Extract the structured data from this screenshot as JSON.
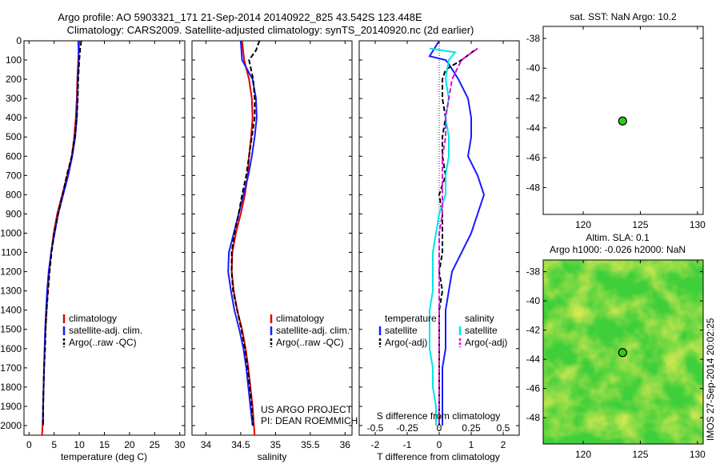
{
  "header": {
    "title_line1": "Argo profile: AO 5903321_171 21-Sep-2014 20140922_825 43.542S 123.448E",
    "title_line2": "Climatology: CARS2009. Satellite-adjusted climatology: synTS_20140920.nc (2d earlier)"
  },
  "side_label": "IMOS 27-Sep-2014 20:02:25",
  "colors": {
    "climatology": "#e00000",
    "satellite": "#1a1aff",
    "argo": "#000000",
    "sat_diff": "#00e5e5",
    "argo_sal": "#e000e0",
    "marker": "#2ecc1a"
  },
  "chart_data": [
    {
      "type": "line",
      "id": "temperature",
      "xlabel": "temperature (deg C)",
      "ylabel": "",
      "xlim": [
        -1,
        31
      ],
      "ylim": [
        2050,
        0
      ],
      "xticks": [
        0,
        5,
        10,
        15,
        20,
        25,
        30
      ],
      "yticks": [
        0,
        100,
        200,
        300,
        400,
        500,
        600,
        700,
        800,
        900,
        1000,
        1100,
        1200,
        1300,
        1400,
        1500,
        1600,
        1700,
        1800,
        1900,
        2000
      ],
      "legend": [
        "climatology",
        "satellite-adj. clim.",
        "Argo(..raw -QC)"
      ],
      "series": [
        {
          "name": "climatology",
          "style": "solid",
          "color": "#e00000",
          "points": [
            [
              10,
              0
            ],
            [
              9.8,
              100
            ],
            [
              9.6,
              200
            ],
            [
              9.5,
              300
            ],
            [
              9.3,
              400
            ],
            [
              9,
              500
            ],
            [
              8.5,
              600
            ],
            [
              7.6,
              700
            ],
            [
              6.6,
              800
            ],
            [
              5.6,
              900
            ],
            [
              4.9,
              1000
            ],
            [
              4.4,
              1100
            ],
            [
              4,
              1200
            ],
            [
              3.7,
              1300
            ],
            [
              3.5,
              1400
            ],
            [
              3.3,
              1500
            ],
            [
              3.1,
              1600
            ],
            [
              3,
              1700
            ],
            [
              2.9,
              1800
            ],
            [
              2.8,
              1900
            ],
            [
              2.7,
              2000
            ],
            [
              2.6,
              2050
            ]
          ]
        },
        {
          "name": "satellite-adj. clim.",
          "style": "solid",
          "color": "#1a1aff",
          "points": [
            [
              9.8,
              0
            ],
            [
              9.9,
              100
            ],
            [
              9.7,
              200
            ],
            [
              9.6,
              300
            ],
            [
              9.5,
              400
            ],
            [
              9.2,
              500
            ],
            [
              8.6,
              600
            ],
            [
              7.8,
              700
            ],
            [
              6.8,
              800
            ],
            [
              5.8,
              900
            ],
            [
              5.1,
              1000
            ],
            [
              4.4,
              1100
            ],
            [
              3.9,
              1200
            ],
            [
              3.6,
              1300
            ],
            [
              3.4,
              1400
            ],
            [
              3.2,
              1500
            ],
            [
              3.1,
              1600
            ],
            [
              3,
              1700
            ],
            [
              2.9,
              1800
            ],
            [
              2.8,
              1900
            ],
            [
              2.8,
              2000
            ]
          ]
        },
        {
          "name": "Argo(..raw -QC)",
          "style": "dashed",
          "color": "#000000",
          "points": [
            [
              10.4,
              0
            ],
            [
              10.2,
              40
            ],
            [
              10,
              100
            ],
            [
              9.8,
              200
            ],
            [
              9.7,
              300
            ],
            [
              9.5,
              400
            ],
            [
              9.1,
              500
            ],
            [
              8.5,
              600
            ],
            [
              7.5,
              700
            ],
            [
              6.7,
              800
            ],
            [
              5.8,
              900
            ],
            [
              5,
              1000
            ],
            [
              4.5,
              1100
            ],
            [
              4.1,
              1200
            ],
            [
              3.8,
              1300
            ],
            [
              3.5,
              1400
            ],
            [
              3.3,
              1500
            ],
            [
              3.2,
              1600
            ],
            [
              3,
              1700
            ],
            [
              2.9,
              1800
            ],
            [
              2.8,
              1900
            ],
            [
              2.8,
              2000
            ]
          ]
        }
      ]
    },
    {
      "type": "line",
      "id": "salinity",
      "xlabel": "salinity",
      "ylabel": "",
      "xlim": [
        33.8,
        36.1
      ],
      "ylim": [
        2050,
        0
      ],
      "xticks": [
        34,
        34.5,
        35,
        35.5,
        36
      ],
      "legend": [
        "climatology",
        "satellite-adj. clim.",
        "Argo(..raw -QC)"
      ],
      "annotations": [
        "US ARGO PROJECT",
        "PI: DEAN ROEMMICH"
      ],
      "series": [
        {
          "name": "climatology",
          "style": "solid",
          "color": "#e00000",
          "points": [
            [
              34.52,
              0
            ],
            [
              34.55,
              100
            ],
            [
              34.62,
              200
            ],
            [
              34.66,
              300
            ],
            [
              34.67,
              400
            ],
            [
              34.65,
              500
            ],
            [
              34.62,
              600
            ],
            [
              34.6,
              700
            ],
            [
              34.56,
              800
            ],
            [
              34.5,
              900
            ],
            [
              34.43,
              1000
            ],
            [
              34.38,
              1100
            ],
            [
              34.37,
              1200
            ],
            [
              34.4,
              1300
            ],
            [
              34.45,
              1400
            ],
            [
              34.52,
              1500
            ],
            [
              34.57,
              1600
            ],
            [
              34.61,
              1700
            ],
            [
              34.64,
              1800
            ],
            [
              34.67,
              1900
            ],
            [
              34.69,
              2000
            ],
            [
              34.7,
              2050
            ]
          ]
        },
        {
          "name": "satellite-adj. clim.",
          "style": "solid",
          "color": "#1a1aff",
          "points": [
            [
              34.5,
              0
            ],
            [
              34.52,
              100
            ],
            [
              34.67,
              200
            ],
            [
              34.72,
              300
            ],
            [
              34.73,
              400
            ],
            [
              34.7,
              500
            ],
            [
              34.66,
              600
            ],
            [
              34.61,
              700
            ],
            [
              34.54,
              800
            ],
            [
              34.47,
              900
            ],
            [
              34.4,
              1000
            ],
            [
              34.33,
              1100
            ],
            [
              34.32,
              1200
            ],
            [
              34.36,
              1300
            ],
            [
              34.41,
              1400
            ],
            [
              34.48,
              1500
            ],
            [
              34.54,
              1600
            ],
            [
              34.58,
              1700
            ],
            [
              34.61,
              1800
            ],
            [
              34.64,
              1900
            ],
            [
              34.67,
              2000
            ]
          ]
        },
        {
          "name": "Argo(..raw -QC)",
          "style": "dashed",
          "color": "#000000",
          "points": [
            [
              34.77,
              0
            ],
            [
              34.72,
              50
            ],
            [
              34.62,
              100
            ],
            [
              34.68,
              200
            ],
            [
              34.7,
              300
            ],
            [
              34.7,
              400
            ],
            [
              34.66,
              500
            ],
            [
              34.62,
              600
            ],
            [
              34.58,
              700
            ],
            [
              34.52,
              800
            ],
            [
              34.47,
              900
            ],
            [
              34.41,
              1000
            ],
            [
              34.37,
              1100
            ],
            [
              34.37,
              1200
            ],
            [
              34.39,
              1300
            ],
            [
              34.45,
              1400
            ],
            [
              34.51,
              1500
            ],
            [
              34.56,
              1600
            ],
            [
              34.6,
              1700
            ],
            [
              34.63,
              1800
            ],
            [
              34.66,
              1900
            ],
            [
              34.68,
              2000
            ]
          ]
        }
      ]
    },
    {
      "type": "line",
      "id": "differences",
      "xlabel": "T difference from climatology",
      "xlabel_top": "S difference from climatology",
      "xlim": [
        -2.5,
        2.5
      ],
      "ylim": [
        2050,
        0
      ],
      "xticks": [
        -2,
        -1,
        0,
        1,
        2
      ],
      "xticks_top": [
        -0.5,
        -0.25,
        0,
        0.25,
        0.5
      ],
      "legend_groups": [
        {
          "title": "temperature",
          "items": [
            "satellite",
            "Argo(-adj)"
          ]
        },
        {
          "title": "salinity",
          "items": [
            "satellite",
            "Argo(-adj)"
          ]
        }
      ],
      "series": [
        {
          "name": "temperature satellite",
          "style": "solid",
          "color": "#1a1aff",
          "points": [
            [
              0,
              0
            ],
            [
              -0.3,
              80
            ],
            [
              0.2,
              100
            ],
            [
              0.3,
              120
            ],
            [
              0.6,
              200
            ],
            [
              0.9,
              300
            ],
            [
              1,
              400
            ],
            [
              1,
              500
            ],
            [
              0.9,
              600
            ],
            [
              1.2,
              700
            ],
            [
              1.4,
              800
            ],
            [
              1.2,
              900
            ],
            [
              1,
              1000
            ],
            [
              0.7,
              1100
            ],
            [
              0.4,
              1200
            ],
            [
              0.3,
              1300
            ],
            [
              0.2,
              1400
            ],
            [
              0.2,
              1500
            ],
            [
              0.2,
              1600
            ],
            [
              0.1,
              1700
            ],
            [
              0.1,
              1800
            ],
            [
              0.1,
              1900
            ],
            [
              0.1,
              2000
            ]
          ]
        },
        {
          "name": "temperature Argo(-adj)",
          "style": "dashed",
          "color": "#000000",
          "points": [
            [
              1.1,
              50
            ],
            [
              0.7,
              100
            ],
            [
              0.2,
              150
            ],
            [
              0.1,
              200
            ],
            [
              0.1,
              300
            ],
            [
              0.2,
              400
            ],
            [
              0.1,
              500
            ],
            [
              0.1,
              600
            ],
            [
              0.2,
              700
            ],
            [
              0,
              800
            ],
            [
              0.1,
              900
            ],
            [
              0.1,
              1000
            ],
            [
              0.1,
              1100
            ],
            [
              0,
              1200
            ],
            [
              0.1,
              1300
            ],
            [
              0,
              1400
            ],
            [
              0,
              1500
            ],
            [
              0,
              1600
            ],
            [
              0,
              1700
            ],
            [
              0,
              1800
            ],
            [
              0,
              1900
            ],
            [
              0,
              2000
            ]
          ]
        },
        {
          "name": "salinity satellite",
          "style": "solid",
          "color": "#00e5e5",
          "points": [
            [
              -0.3,
              40
            ],
            [
              0.5,
              60
            ],
            [
              0.3,
              100
            ],
            [
              0.2,
              200
            ],
            [
              0.3,
              300
            ],
            [
              0.2,
              400
            ],
            [
              0.3,
              500
            ],
            [
              0.3,
              600
            ],
            [
              0.2,
              700
            ],
            [
              0.2,
              800
            ],
            [
              0,
              900
            ],
            [
              -0.1,
              1000
            ],
            [
              -0.2,
              1100
            ],
            [
              -0.2,
              1200
            ],
            [
              -0.2,
              1300
            ],
            [
              -0.3,
              1400
            ],
            [
              -0.3,
              1500
            ],
            [
              -0.3,
              1600
            ],
            [
              -0.2,
              1700
            ],
            [
              -0.2,
              1800
            ],
            [
              -0.1,
              1900
            ],
            [
              -0.1,
              2000
            ]
          ]
        },
        {
          "name": "salinity Argo(-adj)",
          "style": "dashed",
          "color": "#e000e0",
          "points": [
            [
              1.2,
              40
            ],
            [
              0.7,
              100
            ],
            [
              0.4,
              200
            ],
            [
              0.3,
              300
            ],
            [
              0.2,
              400
            ],
            [
              0.2,
              500
            ],
            [
              0.1,
              600
            ],
            [
              0.1,
              700
            ],
            [
              0.1,
              800
            ],
            [
              0.1,
              900
            ],
            [
              0,
              1000
            ],
            [
              0,
              1100
            ],
            [
              0,
              1200
            ],
            [
              0,
              1300
            ],
            [
              0,
              1400
            ],
            [
              0,
              1500
            ],
            [
              0,
              1600
            ],
            [
              0,
              1700
            ],
            [
              0,
              1800
            ],
            [
              0,
              1900
            ],
            [
              0,
              2000
            ]
          ]
        }
      ]
    },
    {
      "type": "scatter",
      "id": "sst_map",
      "title": "sat. SST: NaN Argo: 10.2",
      "xlim": [
        116.5,
        130.5
      ],
      "ylim": [
        -49.8,
        -37.2
      ],
      "xticks": [
        120,
        125,
        130
      ],
      "yticks": [
        -38,
        -40,
        -42,
        -44,
        -46,
        -48
      ],
      "points": [
        [
          123.448,
          -43.542
        ]
      ]
    },
    {
      "type": "heatmap",
      "id": "sla_map",
      "title_line1": "Altim. SLA: 0.1",
      "title_line2": "Argo h1000: -0.026 h2000: NaN",
      "xlim": [
        116.5,
        130.5
      ],
      "ylim": [
        -49.8,
        -37.2
      ],
      "xticks": [
        120,
        125,
        130
      ],
      "yticks": [
        -38,
        -40,
        -42,
        -44,
        -46,
        -48
      ],
      "points": [
        [
          123.448,
          -43.542
        ]
      ]
    }
  ]
}
